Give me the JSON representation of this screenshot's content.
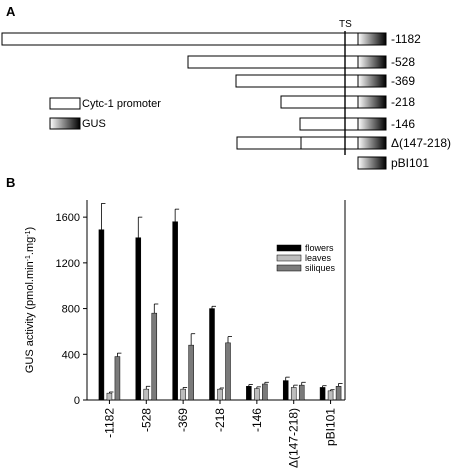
{
  "panel_a": {
    "label": "A",
    "ts_label": "TS",
    "legend": {
      "promoter": "Cytc-1 promoter",
      "gus": "GUS"
    },
    "constructs": [
      {
        "label": "-1182"
      },
      {
        "label": "-528"
      },
      {
        "label": "-369"
      },
      {
        "label": "-218"
      },
      {
        "label": "-146"
      },
      {
        "label": "Δ(147-218)",
        "deletion": true
      },
      {
        "label": "pBI101",
        "promoterless": true
      }
    ]
  },
  "panel_b": {
    "label": "B"
  },
  "chart_data": {
    "type": "bar",
    "title": "",
    "xlabel": "",
    "ylabel": "GUS activity (pmol.min-1.mg-1)",
    "ylabel_parts": {
      "main": "GUS activity (pmol.min",
      "sup1": "-1",
      "mid": ".mg",
      "sup2": "-1",
      "end": ")"
    },
    "ylim": [
      0,
      1750
    ],
    "yticks": [
      0,
      400,
      800,
      1200,
      1600
    ],
    "legend_position": "top-right",
    "categories": [
      "-1182",
      "-528",
      "-369",
      "-218",
      "-146",
      "Δ(147-218)",
      "pBI101"
    ],
    "series": [
      {
        "name": "flowers",
        "color": "#000000",
        "values": [
          1490,
          1420,
          1560,
          800,
          120,
          170,
          110
        ],
        "errors": [
          230,
          180,
          110,
          20,
          15,
          30,
          15
        ]
      },
      {
        "name": "leaves",
        "color": "#bdbdbd",
        "values": [
          60,
          95,
          95,
          95,
          100,
          110,
          80
        ],
        "errors": [
          10,
          25,
          15,
          10,
          15,
          20,
          10
        ]
      },
      {
        "name": "siliques",
        "color": "#7a7a7a",
        "values": [
          380,
          760,
          480,
          500,
          140,
          130,
          120
        ],
        "errors": [
          30,
          80,
          100,
          55,
          15,
          25,
          25
        ]
      }
    ]
  }
}
